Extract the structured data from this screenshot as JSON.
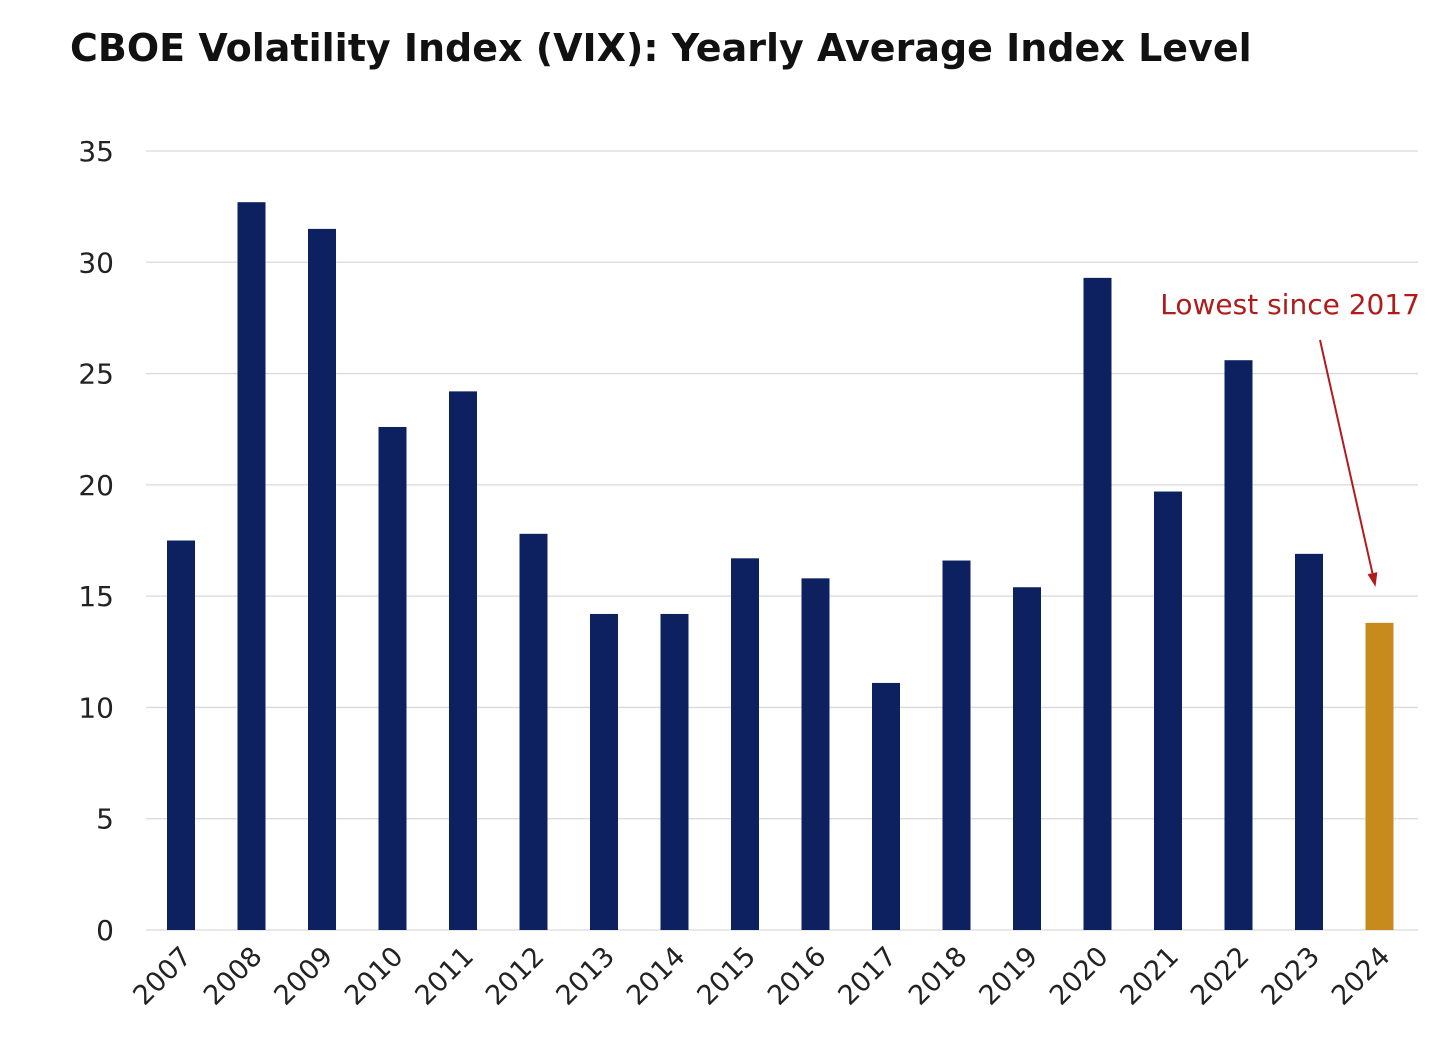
{
  "chart_data": {
    "type": "bar",
    "title": "CBOE Volatility Index (VIX): Yearly Average Index Level",
    "xlabel": "",
    "ylabel": "",
    "categories": [
      "2007",
      "2008",
      "2009",
      "2010",
      "2011",
      "2012",
      "2013",
      "2014",
      "2015",
      "2016",
      "2017",
      "2018",
      "2019",
      "2020",
      "2021",
      "2022",
      "2023",
      "2024"
    ],
    "values": [
      17.5,
      32.7,
      31.5,
      22.6,
      24.2,
      17.8,
      14.2,
      14.2,
      16.7,
      15.8,
      11.1,
      16.6,
      15.4,
      29.3,
      19.7,
      25.6,
      16.9,
      13.8
    ],
    "ylim": [
      0,
      35
    ],
    "yticks": [
      0,
      5,
      10,
      15,
      20,
      25,
      30,
      35
    ],
    "grid": true,
    "legend": "none",
    "colors": {
      "bar": "#0d2160",
      "highlight": "#c68b1c",
      "annotation": "#b01c1c",
      "grid": "#d9d9d9"
    },
    "highlight_category": "2024",
    "annotation": {
      "text": "Lowest since 2017",
      "target_category": "2024"
    }
  }
}
